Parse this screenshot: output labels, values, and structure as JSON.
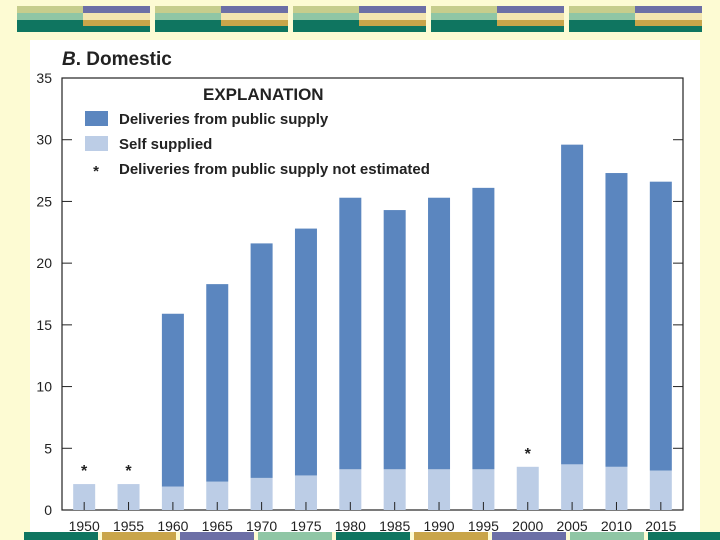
{
  "panel_label": "B",
  "panel_title": ". Domestic",
  "colors": {
    "background": "#fdfbd3",
    "public_supply": "#5b86bf",
    "self_supplied": "#bccde6",
    "deco_teal": "#0f7560",
    "deco_gold": "#c9a54a",
    "deco_purple": "#6c6fa6",
    "deco_olive": "#c6cd8c",
    "deco_mint": "#8fc6a5",
    "deco_cream": "#f2e4b0"
  },
  "chart_data": {
    "type": "bar",
    "stacked": true,
    "title": "B. Domestic",
    "xlabel": "",
    "ylabel": "",
    "ylim": [
      0,
      35
    ],
    "yticks": [
      0,
      5,
      10,
      15,
      20,
      25,
      30,
      35
    ],
    "categories": [
      "1950",
      "1955",
      "1960",
      "1965",
      "1970",
      "1975",
      "1980",
      "1985",
      "1990",
      "1995",
      "2000",
      "2005",
      "2010",
      "2015"
    ],
    "series": [
      {
        "name": "Self supplied",
        "values": [
          2.1,
          2.1,
          1.9,
          2.3,
          2.6,
          2.8,
          3.3,
          3.3,
          3.3,
          3.3,
          3.5,
          3.7,
          3.5,
          3.2
        ]
      },
      {
        "name": "Deliveries from public supply",
        "values": [
          null,
          null,
          14.0,
          16.0,
          19.0,
          20.0,
          22.0,
          21.0,
          22.0,
          22.8,
          null,
          25.9,
          23.8,
          23.4
        ]
      }
    ],
    "not_estimated_marker": "*",
    "not_estimated_categories": [
      "1950",
      "1955",
      "2000"
    ],
    "legend": {
      "title": "EXPLANATION",
      "position": "top-left",
      "entries": [
        {
          "label": "Deliveries from public supply",
          "kind": "swatch",
          "series": "Deliveries from public supply"
        },
        {
          "label": "Self supplied",
          "kind": "swatch",
          "series": "Self supplied"
        },
        {
          "label": "Deliveries from public supply not estimated",
          "kind": "marker",
          "marker": "*"
        }
      ]
    }
  }
}
